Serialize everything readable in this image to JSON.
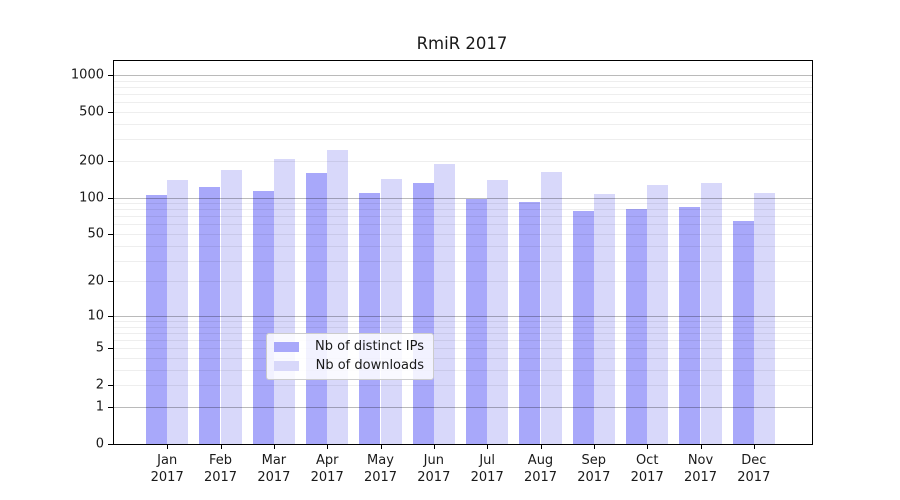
{
  "title": "RmiR 2017",
  "chart_data": {
    "type": "bar",
    "title": "RmiR 2017",
    "categories": [
      "Jan",
      "Feb",
      "Mar",
      "Apr",
      "May",
      "Jun",
      "Jul",
      "Aug",
      "Sep",
      "Oct",
      "Nov",
      "Dec"
    ],
    "year": "2017",
    "series": [
      {
        "name": "Nb of distinct IPs",
        "color": "#a8a8fa",
        "values": [
          104,
          123,
          113,
          160,
          108,
          132,
          98,
          92,
          77,
          80,
          84,
          64
        ]
      },
      {
        "name": "Nb of downloads",
        "color": "#d8d8fa",
        "values": [
          139,
          168,
          208,
          245,
          143,
          189,
          139,
          163,
          107,
          127,
          132,
          108
        ]
      }
    ],
    "y_scale": "log10(value+1)",
    "y_ticks": [
      0,
      1,
      2,
      5,
      10,
      20,
      50,
      100,
      200,
      500,
      1000
    ],
    "ylim": [
      0,
      1300
    ],
    "xlabel": "",
    "ylabel": "",
    "grid": "horizontal, minor and major, drawn over bars",
    "legend_position": "lower center"
  },
  "colors": {
    "distinct_ips_bar": "#a8a8fa",
    "downloads_bar": "#d8d8fa",
    "major_grid": "#b8b8b8",
    "minor_grid": "#ececec",
    "axis": "#000000"
  }
}
